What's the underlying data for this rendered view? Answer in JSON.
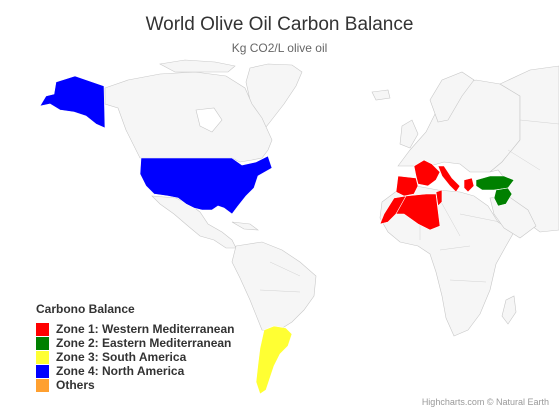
{
  "title": "World Olive Oil Carbon Balance",
  "subtitle": "Kg CO2/L olive oil",
  "legend": {
    "title": "Carbono Balance",
    "items": [
      {
        "label": "Zone 1: Western Mediterranean",
        "color": "#ff0000"
      },
      {
        "label": "Zone 2: Eastern Mediterranean",
        "color": "#008000"
      },
      {
        "label": "Zone 3: South America",
        "color": "#ffff33"
      },
      {
        "label": "Zone 4: North America",
        "color": "#0000ff"
      },
      {
        "label": "Others",
        "color": "#ffa030"
      }
    ]
  },
  "credits": "Highcharts.com © Natural Earth",
  "map": {
    "land_color": "#f6f6f6",
    "regions": [
      {
        "name": "Alaska",
        "zone": 4
      },
      {
        "name": "United States",
        "zone": 4
      },
      {
        "name": "Portugal",
        "zone": 1
      },
      {
        "name": "Spain",
        "zone": 1
      },
      {
        "name": "France",
        "zone": 1
      },
      {
        "name": "Italy",
        "zone": 1
      },
      {
        "name": "Morocco",
        "zone": 1
      },
      {
        "name": "Algeria",
        "zone": 1
      },
      {
        "name": "Tunisia",
        "zone": 1
      },
      {
        "name": "Greece",
        "zone": 2
      },
      {
        "name": "Turkey",
        "zone": 2
      },
      {
        "name": "Syria",
        "zone": 2
      },
      {
        "name": "Argentina",
        "zone": 3
      }
    ]
  }
}
